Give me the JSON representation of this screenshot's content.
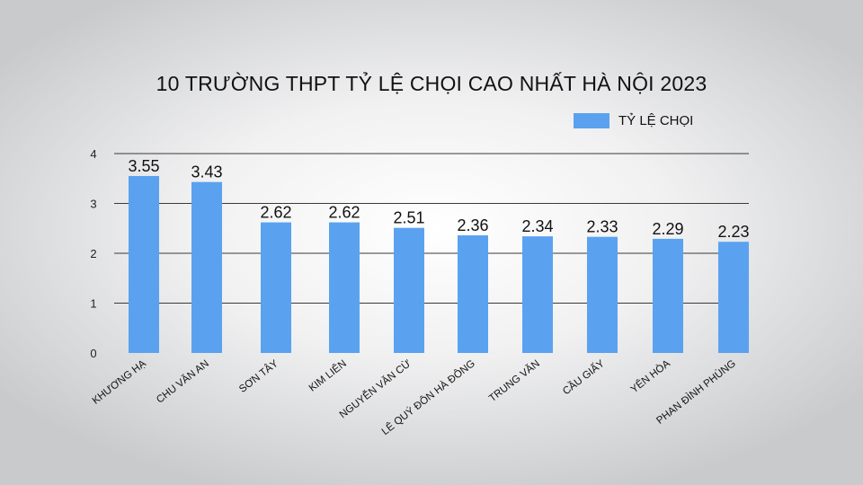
{
  "chart_data": {
    "type": "bar",
    "title": "10 TRƯỜNG THPT TỶ LỆ CHỌI CAO NHẤT HÀ NỘI 2023",
    "categories": [
      "KHƯƠNG HẠ",
      "CHU VĂN AN",
      "SƠN TÂY",
      "KIM LIÊN",
      "NGUYỄN VĂN CỪ",
      "LÊ QUÝ ĐÔN HÀ ĐÔNG",
      "TRUNG VĂN",
      "CẦU GIẤY",
      "YÊN HÒA",
      "PHAN ĐÌNH PHÙNG"
    ],
    "series": [
      {
        "name": "TỶ LỆ CHỌI",
        "values": [
          3.55,
          3.43,
          2.62,
          2.62,
          2.51,
          2.36,
          2.34,
          2.33,
          2.29,
          2.23
        ]
      }
    ],
    "value_labels": [
      "3.55",
      "3.43",
      "2.62",
      "2.62",
      "2.51",
      "2.36",
      "2.34",
      "2.33",
      "2.29",
      "2.23"
    ],
    "ylim": [
      0,
      4
    ],
    "yticks": [
      "0",
      "1",
      "2",
      "3",
      "4"
    ],
    "xlabel": "",
    "ylabel": "",
    "grid": true,
    "legend_position": "top-right",
    "bar_color": "#5aa2f0"
  }
}
